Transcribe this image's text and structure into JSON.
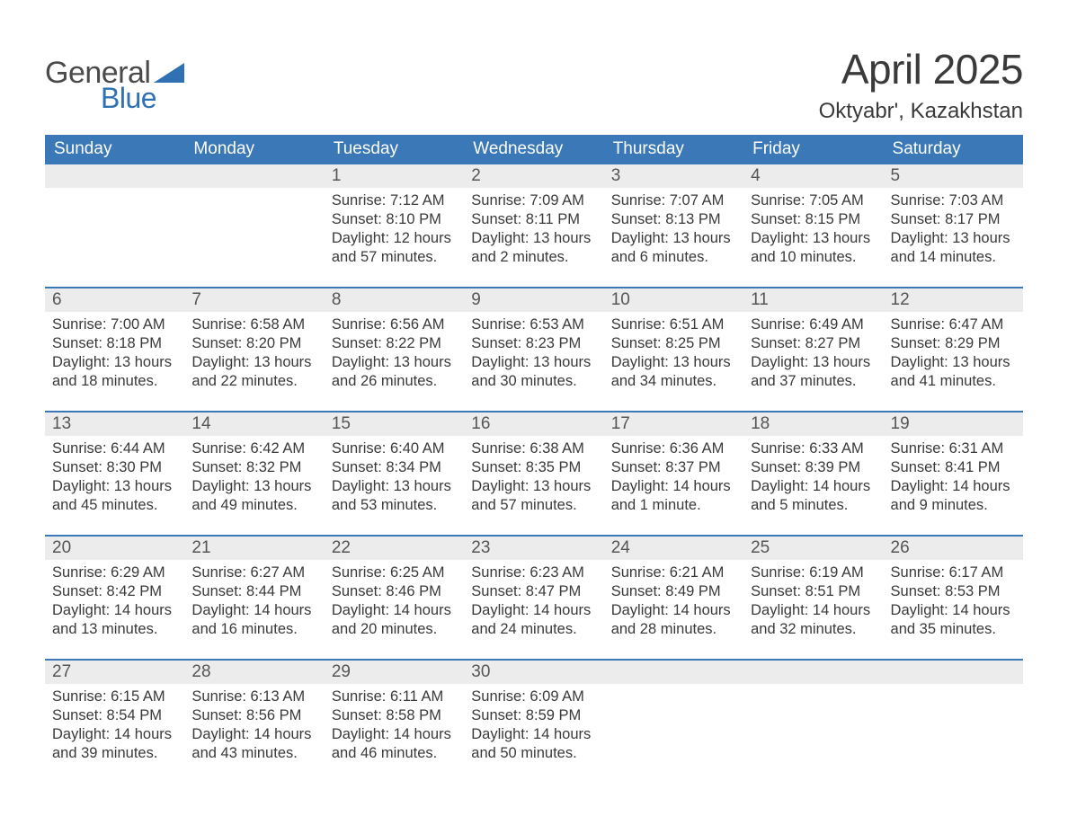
{
  "logo": {
    "text_top": "General",
    "text_bottom": "Blue",
    "tri_color": "#2f71b3"
  },
  "title": "April 2025",
  "location": "Oktyabr', Kazakhstan",
  "colors": {
    "header_bg": "#3a78b7",
    "header_text": "#ffffff",
    "daynum_bg": "#ececec",
    "week_border": "#3a78b7",
    "body_text": "#3a3a3a",
    "logo_gray": "#4a4a4a",
    "logo_blue": "#2f71b3",
    "page_bg": "#ffffff"
  },
  "typography": {
    "title_fontsize": 46,
    "location_fontsize": 24,
    "dayheader_fontsize": 19,
    "daynum_fontsize": 19,
    "body_fontsize": 16.5,
    "font_family": "Arial"
  },
  "day_headers": [
    "Sunday",
    "Monday",
    "Tuesday",
    "Wednesday",
    "Thursday",
    "Friday",
    "Saturday"
  ],
  "weeks": [
    [
      {
        "day": "",
        "sunrise": "",
        "sunset": "",
        "daylight": ""
      },
      {
        "day": "",
        "sunrise": "",
        "sunset": "",
        "daylight": ""
      },
      {
        "day": "1",
        "sunrise": "Sunrise: 7:12 AM",
        "sunset": "Sunset: 8:10 PM",
        "daylight": "Daylight: 12 hours and 57 minutes."
      },
      {
        "day": "2",
        "sunrise": "Sunrise: 7:09 AM",
        "sunset": "Sunset: 8:11 PM",
        "daylight": "Daylight: 13 hours and 2 minutes."
      },
      {
        "day": "3",
        "sunrise": "Sunrise: 7:07 AM",
        "sunset": "Sunset: 8:13 PM",
        "daylight": "Daylight: 13 hours and 6 minutes."
      },
      {
        "day": "4",
        "sunrise": "Sunrise: 7:05 AM",
        "sunset": "Sunset: 8:15 PM",
        "daylight": "Daylight: 13 hours and 10 minutes."
      },
      {
        "day": "5",
        "sunrise": "Sunrise: 7:03 AM",
        "sunset": "Sunset: 8:17 PM",
        "daylight": "Daylight: 13 hours and 14 minutes."
      }
    ],
    [
      {
        "day": "6",
        "sunrise": "Sunrise: 7:00 AM",
        "sunset": "Sunset: 8:18 PM",
        "daylight": "Daylight: 13 hours and 18 minutes."
      },
      {
        "day": "7",
        "sunrise": "Sunrise: 6:58 AM",
        "sunset": "Sunset: 8:20 PM",
        "daylight": "Daylight: 13 hours and 22 minutes."
      },
      {
        "day": "8",
        "sunrise": "Sunrise: 6:56 AM",
        "sunset": "Sunset: 8:22 PM",
        "daylight": "Daylight: 13 hours and 26 minutes."
      },
      {
        "day": "9",
        "sunrise": "Sunrise: 6:53 AM",
        "sunset": "Sunset: 8:23 PM",
        "daylight": "Daylight: 13 hours and 30 minutes."
      },
      {
        "day": "10",
        "sunrise": "Sunrise: 6:51 AM",
        "sunset": "Sunset: 8:25 PM",
        "daylight": "Daylight: 13 hours and 34 minutes."
      },
      {
        "day": "11",
        "sunrise": "Sunrise: 6:49 AM",
        "sunset": "Sunset: 8:27 PM",
        "daylight": "Daylight: 13 hours and 37 minutes."
      },
      {
        "day": "12",
        "sunrise": "Sunrise: 6:47 AM",
        "sunset": "Sunset: 8:29 PM",
        "daylight": "Daylight: 13 hours and 41 minutes."
      }
    ],
    [
      {
        "day": "13",
        "sunrise": "Sunrise: 6:44 AM",
        "sunset": "Sunset: 8:30 PM",
        "daylight": "Daylight: 13 hours and 45 minutes."
      },
      {
        "day": "14",
        "sunrise": "Sunrise: 6:42 AM",
        "sunset": "Sunset: 8:32 PM",
        "daylight": "Daylight: 13 hours and 49 minutes."
      },
      {
        "day": "15",
        "sunrise": "Sunrise: 6:40 AM",
        "sunset": "Sunset: 8:34 PM",
        "daylight": "Daylight: 13 hours and 53 minutes."
      },
      {
        "day": "16",
        "sunrise": "Sunrise: 6:38 AM",
        "sunset": "Sunset: 8:35 PM",
        "daylight": "Daylight: 13 hours and 57 minutes."
      },
      {
        "day": "17",
        "sunrise": "Sunrise: 6:36 AM",
        "sunset": "Sunset: 8:37 PM",
        "daylight": "Daylight: 14 hours and 1 minute."
      },
      {
        "day": "18",
        "sunrise": "Sunrise: 6:33 AM",
        "sunset": "Sunset: 8:39 PM",
        "daylight": "Daylight: 14 hours and 5 minutes."
      },
      {
        "day": "19",
        "sunrise": "Sunrise: 6:31 AM",
        "sunset": "Sunset: 8:41 PM",
        "daylight": "Daylight: 14 hours and 9 minutes."
      }
    ],
    [
      {
        "day": "20",
        "sunrise": "Sunrise: 6:29 AM",
        "sunset": "Sunset: 8:42 PM",
        "daylight": "Daylight: 14 hours and 13 minutes."
      },
      {
        "day": "21",
        "sunrise": "Sunrise: 6:27 AM",
        "sunset": "Sunset: 8:44 PM",
        "daylight": "Daylight: 14 hours and 16 minutes."
      },
      {
        "day": "22",
        "sunrise": "Sunrise: 6:25 AM",
        "sunset": "Sunset: 8:46 PM",
        "daylight": "Daylight: 14 hours and 20 minutes."
      },
      {
        "day": "23",
        "sunrise": "Sunrise: 6:23 AM",
        "sunset": "Sunset: 8:47 PM",
        "daylight": "Daylight: 14 hours and 24 minutes."
      },
      {
        "day": "24",
        "sunrise": "Sunrise: 6:21 AM",
        "sunset": "Sunset: 8:49 PM",
        "daylight": "Daylight: 14 hours and 28 minutes."
      },
      {
        "day": "25",
        "sunrise": "Sunrise: 6:19 AM",
        "sunset": "Sunset: 8:51 PM",
        "daylight": "Daylight: 14 hours and 32 minutes."
      },
      {
        "day": "26",
        "sunrise": "Sunrise: 6:17 AM",
        "sunset": "Sunset: 8:53 PM",
        "daylight": "Daylight: 14 hours and 35 minutes."
      }
    ],
    [
      {
        "day": "27",
        "sunrise": "Sunrise: 6:15 AM",
        "sunset": "Sunset: 8:54 PM",
        "daylight": "Daylight: 14 hours and 39 minutes."
      },
      {
        "day": "28",
        "sunrise": "Sunrise: 6:13 AM",
        "sunset": "Sunset: 8:56 PM",
        "daylight": "Daylight: 14 hours and 43 minutes."
      },
      {
        "day": "29",
        "sunrise": "Sunrise: 6:11 AM",
        "sunset": "Sunset: 8:58 PM",
        "daylight": "Daylight: 14 hours and 46 minutes."
      },
      {
        "day": "30",
        "sunrise": "Sunrise: 6:09 AM",
        "sunset": "Sunset: 8:59 PM",
        "daylight": "Daylight: 14 hours and 50 minutes."
      },
      {
        "day": "",
        "sunrise": "",
        "sunset": "",
        "daylight": ""
      },
      {
        "day": "",
        "sunrise": "",
        "sunset": "",
        "daylight": ""
      },
      {
        "day": "",
        "sunrise": "",
        "sunset": "",
        "daylight": ""
      }
    ]
  ]
}
